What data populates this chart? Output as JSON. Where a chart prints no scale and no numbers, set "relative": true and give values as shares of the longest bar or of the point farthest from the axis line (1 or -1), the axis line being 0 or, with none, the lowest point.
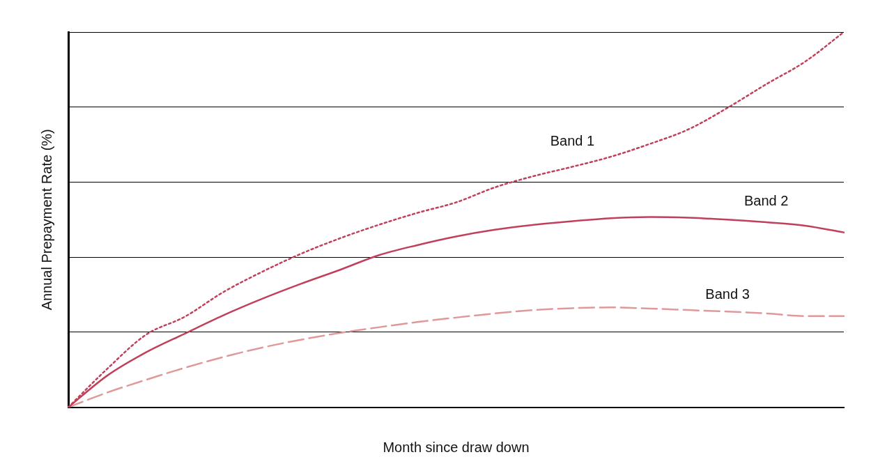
{
  "chart_data": {
    "type": "line",
    "relative": true,
    "xlabel": "Month since draw down",
    "ylabel": "Annual Prepayment Rate (%)",
    "categories": [
      null,
      null,
      null,
      null,
      null,
      null,
      null,
      null,
      null,
      null,
      null,
      null,
      null,
      null,
      null,
      null,
      null,
      null,
      null,
      null,
      null
    ],
    "grid": "y",
    "legend": false,
    "marker": "none",
    "series": [
      {
        "name": "Band 1",
        "color": "#c0405a",
        "line_style": "dotted",
        "values": [
          0,
          0.102,
          0.193,
          0.241,
          0.307,
          0.361,
          0.409,
          0.45,
          0.486,
          0.518,
          0.546,
          0.586,
          0.616,
          0.641,
          0.668,
          0.702,
          0.741,
          0.798,
          0.861,
          0.921,
          1
        ]
      },
      {
        "name": "Band 2",
        "color": "#c0405a",
        "line_style": "solid",
        "values": [
          0,
          0.084,
          0.146,
          0.196,
          0.245,
          0.289,
          0.329,
          0.366,
          0.405,
          0.432,
          0.455,
          0.473,
          0.486,
          0.496,
          0.504,
          0.507,
          0.505,
          0.5,
          0.493,
          0.484,
          0.466
        ]
      },
      {
        "name": "Band 3",
        "color": "#e0999a",
        "line_style": "dashed",
        "values": [
          0,
          0.039,
          0.073,
          0.105,
          0.134,
          0.159,
          0.18,
          0.198,
          0.213,
          0.227,
          0.239,
          0.25,
          0.259,
          0.264,
          0.266,
          0.263,
          0.259,
          0.255,
          0.25,
          0.243,
          0.243
        ]
      }
    ]
  }
}
